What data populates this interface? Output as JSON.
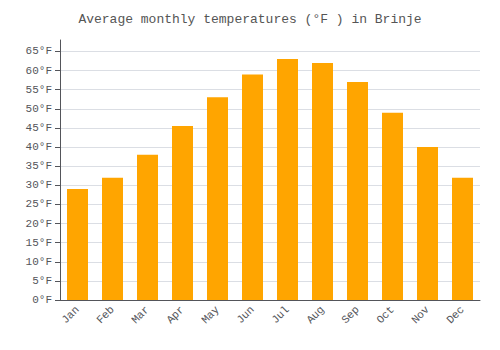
{
  "chart_data": {
    "type": "bar",
    "title": "Average monthly temperatures (°F ) in Brinje",
    "categories": [
      "Jan",
      "Feb",
      "Mar",
      "Apr",
      "May",
      "Jun",
      "Jul",
      "Aug",
      "Sep",
      "Oct",
      "Nov",
      "Dec"
    ],
    "values": [
      29,
      32,
      38,
      45.5,
      53,
      59,
      63,
      62,
      57,
      49,
      40,
      32
    ],
    "color": "#FFA500",
    "ylim": [
      0,
      68
    ],
    "yticks": [
      {
        "value": 0,
        "label": "0°F"
      },
      {
        "value": 5,
        "label": "5°F"
      },
      {
        "value": 10,
        "label": "10°F"
      },
      {
        "value": 15,
        "label": "15°F"
      },
      {
        "value": 20,
        "label": "20°F"
      },
      {
        "value": 25,
        "label": "25°F"
      },
      {
        "value": 30,
        "label": "30°F"
      },
      {
        "value": 35,
        "label": "35°F"
      },
      {
        "value": 40,
        "label": "40°F"
      },
      {
        "value": 45,
        "label": "45°F"
      },
      {
        "value": 50,
        "label": "50°F"
      },
      {
        "value": 55,
        "label": "55°F"
      },
      {
        "value": 60,
        "label": "60°F"
      },
      {
        "value": 65,
        "label": "65°F"
      }
    ],
    "grid": true
  }
}
